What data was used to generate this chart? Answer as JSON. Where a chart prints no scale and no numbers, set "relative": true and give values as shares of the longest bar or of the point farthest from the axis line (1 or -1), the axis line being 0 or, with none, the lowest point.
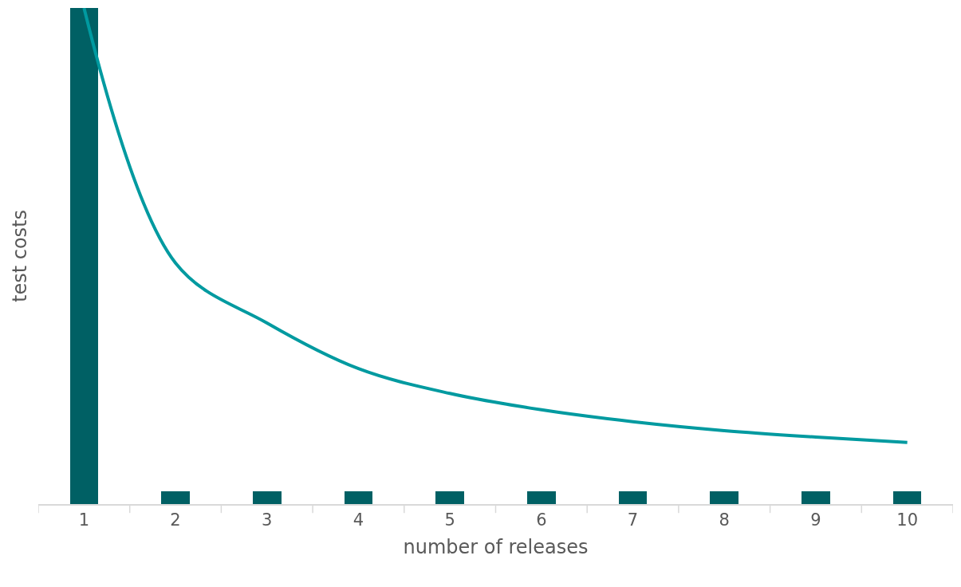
{
  "chart_data": {
    "type": "bar",
    "relative": true,
    "xlabel": "number of releases",
    "ylabel": "test costs",
    "categories": [
      "1",
      "2",
      "3",
      "4",
      "5",
      "6",
      "7",
      "8",
      "9",
      "10"
    ],
    "series": [
      {
        "color": "#006064",
        "values": [
          1,
          0.026,
          0.026,
          0.026,
          0.026,
          0.026,
          0.026,
          0.026,
          0.026,
          0.026
        ]
      },
      {
        "type": "line",
        "color": "#009aa0",
        "values": [
          1,
          0.486,
          0.365,
          0.273,
          0.223,
          0.19,
          0.166,
          0.148,
          0.135,
          0.124
        ]
      }
    ]
  }
}
